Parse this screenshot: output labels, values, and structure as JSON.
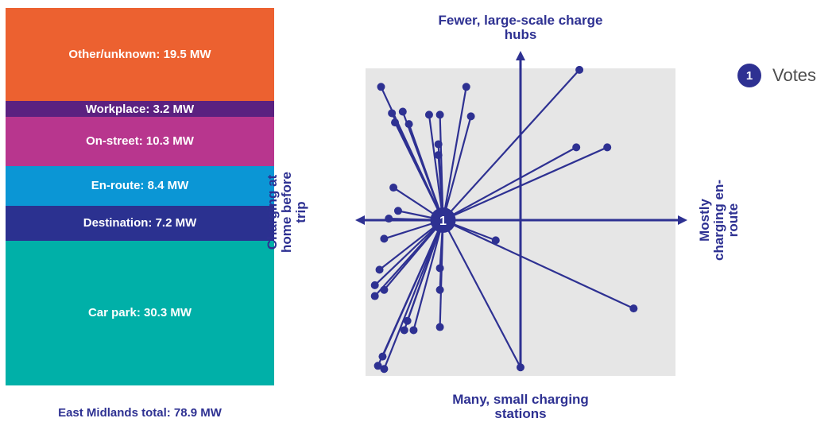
{
  "stacked_bar": {
    "total_label": "East Midlands total: 78.9 MW",
    "segments": [
      {
        "label": "Other/unknown: 19.5 MW",
        "value": 19.5,
        "color": "#ec6130"
      },
      {
        "label": "Workplace: 3.2 MW",
        "value": 3.2,
        "color": "#5b2180"
      },
      {
        "label": "On-street: 10.3 MW",
        "value": 10.3,
        "color": "#b8368e"
      },
      {
        "label": "En-route: 8.4 MW",
        "value": 8.4,
        "color": "#0b96d5"
      },
      {
        "label": "Destination: 7.2 MW",
        "value": 7.2,
        "color": "#2b3190"
      },
      {
        "label": "Car park: 30.3 MW",
        "value": 30.3,
        "color": "#00b0a8"
      }
    ]
  },
  "quadrant": {
    "top_label": "Fewer, large-scale charge hubs",
    "bottom_label": "Many, small charging stations",
    "left_label": "Charging at home before trip",
    "right_label": "Mostly charging en-route",
    "center_marker": "1",
    "colors": {
      "line": "#2e3192",
      "background": "#e6e6e6"
    }
  },
  "legend": {
    "badge": "1",
    "label": "Votes"
  },
  "chart_data": [
    {
      "type": "bar",
      "stacked": true,
      "title": "",
      "total": "East Midlands total: 78.9 MW",
      "categories": [
        "Other/unknown",
        "Workplace",
        "On-street",
        "En-route",
        "Destination",
        "Car park"
      ],
      "values": [
        19.5,
        3.2,
        10.3,
        8.4,
        7.2,
        30.3
      ],
      "unit": "MW"
    },
    {
      "type": "scatter",
      "axes": {
        "x_negative": "Charging at home before trip",
        "x_positive": "Mostly charging en-route",
        "y_positive": "Fewer, large-scale charge hubs",
        "y_negative": "Many, small charging stations"
      },
      "xlim": [
        -1,
        1
      ],
      "ylim": [
        -1,
        1
      ],
      "center": [
        -0.5,
        0.0
      ],
      "votes": [
        {
          "x": 0.38,
          "y": 0.97
        },
        {
          "x": 0.36,
          "y": 0.47
        },
        {
          "x": 0.56,
          "y": 0.47
        },
        {
          "x": -0.9,
          "y": 0.86
        },
        {
          "x": -0.83,
          "y": 0.69
        },
        {
          "x": -0.76,
          "y": 0.7
        },
        {
          "x": -0.81,
          "y": 0.63
        },
        {
          "x": -0.72,
          "y": 0.62
        },
        {
          "x": -0.59,
          "y": 0.68
        },
        {
          "x": -0.52,
          "y": 0.68
        },
        {
          "x": -0.35,
          "y": 0.86
        },
        {
          "x": -0.32,
          "y": 0.67
        },
        {
          "x": -0.53,
          "y": 0.49
        },
        {
          "x": -0.53,
          "y": 0.42
        },
        {
          "x": -0.82,
          "y": 0.21
        },
        {
          "x": -0.79,
          "y": 0.06
        },
        {
          "x": -0.85,
          "y": 0.01
        },
        {
          "x": -0.16,
          "y": -0.13
        },
        {
          "x": -0.88,
          "y": -0.12
        },
        {
          "x": -0.52,
          "y": -0.31
        },
        {
          "x": -0.91,
          "y": -0.32
        },
        {
          "x": -0.94,
          "y": -0.42
        },
        {
          "x": -0.94,
          "y": -0.49
        },
        {
          "x": -0.88,
          "y": -0.45
        },
        {
          "x": -0.52,
          "y": -0.45
        },
        {
          "x": -0.73,
          "y": -0.65
        },
        {
          "x": -0.75,
          "y": -0.71
        },
        {
          "x": -0.69,
          "y": -0.71
        },
        {
          "x": -0.52,
          "y": -0.69
        },
        {
          "x": -0.89,
          "y": -0.88
        },
        {
          "x": -0.92,
          "y": -0.94
        },
        {
          "x": -0.88,
          "y": -0.96
        },
        {
          "x": 0.0,
          "y": -0.95
        },
        {
          "x": 0.73,
          "y": -0.57
        }
      ]
    }
  ]
}
